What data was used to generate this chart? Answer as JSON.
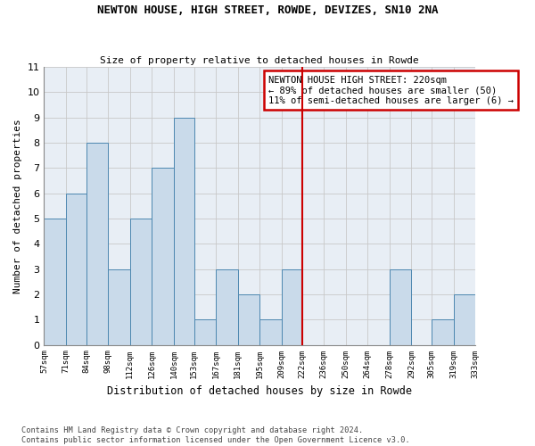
{
  "title": "NEWTON HOUSE, HIGH STREET, ROWDE, DEVIZES, SN10 2NA",
  "subtitle": "Size of property relative to detached houses in Rowde",
  "xlabel": "Distribution of detached houses by size in Rowde",
  "ylabel": "Number of detached properties",
  "bin_labels": [
    "57sqm",
    "71sqm",
    "84sqm",
    "98sqm",
    "112sqm",
    "126sqm",
    "140sqm",
    "153sqm",
    "167sqm",
    "181sqm",
    "195sqm",
    "209sqm",
    "222sqm",
    "236sqm",
    "250sqm",
    "264sqm",
    "278sqm",
    "292sqm",
    "305sqm",
    "319sqm",
    "333sqm"
  ],
  "counts": [
    5,
    6,
    8,
    3,
    5,
    7,
    9,
    1,
    3,
    2,
    1,
    3,
    0,
    0,
    0,
    0,
    3,
    0,
    1,
    2
  ],
  "bar_edges": [
    57,
    71,
    84,
    98,
    112,
    126,
    140,
    153,
    167,
    181,
    195,
    209,
    222,
    236,
    250,
    264,
    278,
    292,
    305,
    319,
    333
  ],
  "bar_color": "#c9daea",
  "bar_edge_color": "#4d87b0",
  "grid_color": "#c8c8c8",
  "bg_color": "#e8eef5",
  "vline_x": 222,
  "vline_color": "#cc0000",
  "annotation_text": "NEWTON HOUSE HIGH STREET: 220sqm\n← 89% of detached houses are smaller (50)\n11% of semi-detached houses are larger (6) →",
  "annotation_box_color": "#cc0000",
  "ylim": [
    0,
    11
  ],
  "yticks": [
    0,
    1,
    2,
    3,
    4,
    5,
    6,
    7,
    8,
    9,
    10,
    11
  ],
  "footer_line1": "Contains HM Land Registry data © Crown copyright and database right 2024.",
  "footer_line2": "Contains public sector information licensed under the Open Government Licence v3.0."
}
